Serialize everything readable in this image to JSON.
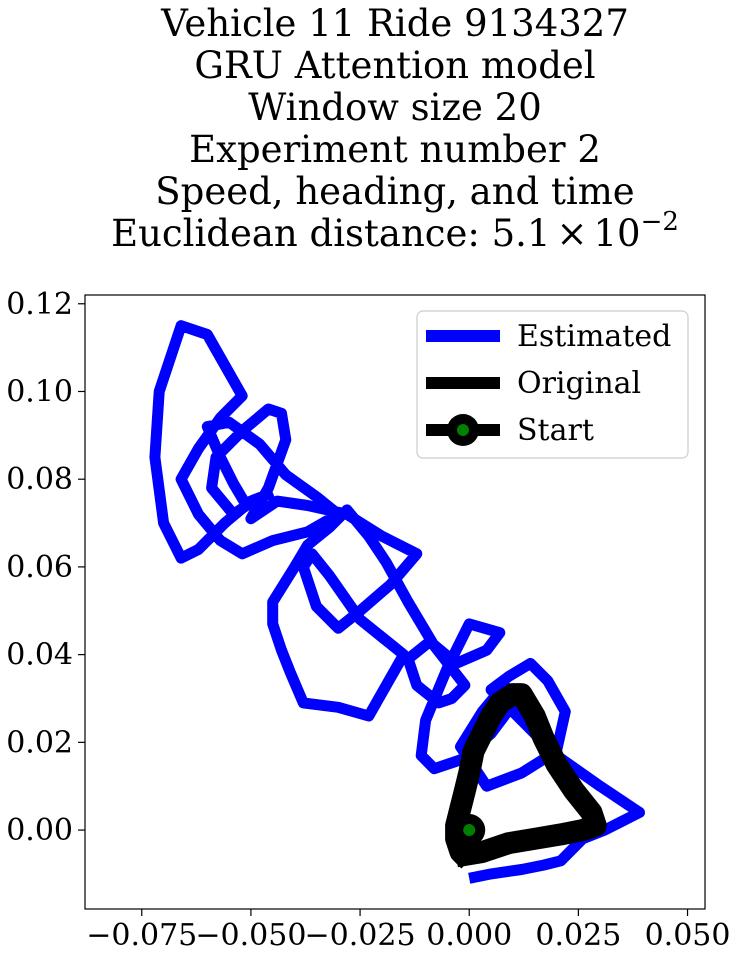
{
  "chart_data": {
    "type": "line",
    "title_lines": [
      "Vehicle 11 Ride 9134327",
      "GRU Attention model",
      "Window size 20",
      "Experiment number 2",
      "Speed, heading, and time"
    ],
    "title_metric": {
      "prefix": "Euclidean distance: ",
      "mantissa": "5.1",
      "times": "×",
      "base": "10",
      "exponent": "−2"
    },
    "xlabel": "",
    "ylabel": "",
    "xlim": [
      -0.088,
      0.054
    ],
    "ylim": [
      -0.018,
      0.122
    ],
    "x_ticks": [
      {
        "value": -0.075,
        "label": "−0.075"
      },
      {
        "value": -0.05,
        "label": "−0.050"
      },
      {
        "value": -0.025,
        "label": "−0.025"
      },
      {
        "value": 0.0,
        "label": "0.000"
      },
      {
        "value": 0.025,
        "label": "0.025"
      },
      {
        "value": 0.05,
        "label": "0.050"
      }
    ],
    "y_ticks": [
      {
        "value": 0.0,
        "label": "0.00"
      },
      {
        "value": 0.02,
        "label": "0.02"
      },
      {
        "value": 0.04,
        "label": "0.04"
      },
      {
        "value": 0.06,
        "label": "0.06"
      },
      {
        "value": 0.08,
        "label": "0.08"
      },
      {
        "value": 0.1,
        "label": "0.10"
      },
      {
        "value": 0.12,
        "label": "0.12"
      }
    ],
    "grid": false,
    "legend_position": "top-right",
    "series": [
      {
        "name": "Estimated",
        "color": "#0000ff",
        "x": [
          0.0,
          0.005,
          0.012,
          0.017,
          0.021,
          0.026,
          0.031,
          0.035,
          0.039,
          0.03,
          0.02,
          0.01,
          0.005,
          0.009,
          0.014,
          0.018,
          0.022,
          0.02,
          0.012,
          0.004,
          -0.002,
          0.003,
          0.008,
          0.011,
          0.005,
          -0.002,
          -0.008,
          -0.011,
          -0.01,
          -0.005,
          0.0,
          0.007,
          0.004,
          -0.003,
          -0.009,
          -0.014,
          -0.012,
          -0.007,
          -0.004,
          -0.001,
          -0.008,
          -0.014,
          -0.019,
          -0.023,
          -0.028,
          -0.032,
          -0.037,
          -0.04,
          -0.045,
          -0.045,
          -0.043,
          -0.041,
          -0.038,
          -0.03,
          -0.023,
          -0.015,
          -0.025,
          -0.032,
          -0.036,
          -0.038,
          -0.035,
          -0.03,
          -0.025,
          -0.018,
          -0.012,
          -0.02,
          -0.028,
          -0.037,
          -0.044,
          -0.05,
          -0.046,
          -0.042,
          -0.043,
          -0.046,
          -0.052,
          -0.058,
          -0.059,
          -0.054,
          -0.051,
          -0.054,
          -0.057,
          -0.06,
          -0.055,
          -0.048,
          -0.042,
          -0.035,
          -0.03,
          -0.037,
          -0.045,
          -0.052,
          -0.057,
          -0.062,
          -0.066,
          -0.062,
          -0.057,
          -0.052,
          -0.06,
          -0.066,
          -0.071,
          -0.072,
          -0.07,
          -0.066,
          -0.062,
          -0.056,
          -0.05,
          -0.045
        ],
        "y": [
          -0.011,
          -0.01,
          -0.009,
          -0.008,
          -0.007,
          -0.002,
          0.0,
          0.002,
          0.004,
          0.01,
          0.017,
          0.027,
          0.032,
          0.035,
          0.038,
          0.034,
          0.027,
          0.018,
          0.013,
          0.01,
          0.019,
          0.027,
          0.033,
          0.03,
          0.022,
          0.016,
          0.014,
          0.017,
          0.025,
          0.037,
          0.047,
          0.045,
          0.041,
          0.038,
          0.043,
          0.039,
          0.033,
          0.029,
          0.03,
          0.033,
          0.042,
          0.052,
          0.061,
          0.067,
          0.073,
          0.069,
          0.065,
          0.06,
          0.052,
          0.047,
          0.041,
          0.036,
          0.029,
          0.028,
          0.026,
          0.04,
          0.048,
          0.058,
          0.063,
          0.06,
          0.051,
          0.046,
          0.05,
          0.056,
          0.063,
          0.067,
          0.072,
          0.074,
          0.075,
          0.071,
          0.078,
          0.089,
          0.095,
          0.096,
          0.091,
          0.085,
          0.078,
          0.072,
          0.074,
          0.079,
          0.085,
          0.092,
          0.093,
          0.088,
          0.081,
          0.076,
          0.072,
          0.068,
          0.066,
          0.063,
          0.066,
          0.072,
          0.08,
          0.087,
          0.094,
          0.099,
          0.113,
          0.115,
          0.1,
          0.085,
          0.07,
          0.062,
          0.064,
          0.07,
          0.075,
          0.077
        ]
      },
      {
        "name": "Original",
        "color": "#000000",
        "x": [
          -0.003,
          0.003,
          0.009,
          0.015,
          0.021,
          0.026,
          0.029,
          0.028,
          0.024,
          0.02,
          0.017,
          0.015,
          0.012,
          0.01,
          0.007,
          0.005,
          0.003,
          0.001,
          0.0,
          -0.001,
          -0.002,
          -0.003,
          -0.003,
          -0.002,
          0.0
        ],
        "y": [
          -0.006,
          -0.005,
          -0.003,
          -0.002,
          -0.001,
          0.0,
          0.001,
          0.004,
          0.009,
          0.015,
          0.021,
          0.026,
          0.031,
          0.031,
          0.029,
          0.026,
          0.022,
          0.018,
          0.013,
          0.009,
          0.005,
          0.001,
          -0.002,
          -0.005,
          -0.007
        ]
      }
    ],
    "start_marker": {
      "name": "Start",
      "x": 0.0,
      "y": 0.0,
      "edge_color": "#000000",
      "face_color": "#008000"
    }
  }
}
